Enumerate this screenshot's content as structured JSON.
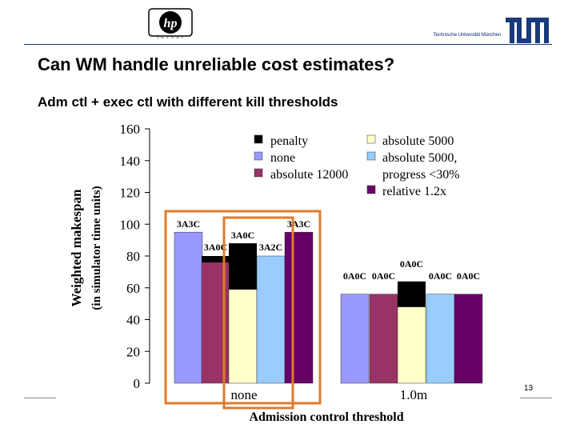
{
  "header": {
    "hp_logo_text": "hp",
    "hp_tagline": "invent",
    "tum_text": "Technische Universität München"
  },
  "slide": {
    "title": "Can WM handle unreliable cost estimates?",
    "subtitle": "Adm ctl + exec ctl with different kill thresholds",
    "page_number": "13"
  },
  "colors": {
    "penalty": "#000000",
    "none": "#9999ff",
    "absolute_12000": "#993366",
    "absolute_5000": "#ffffcc",
    "absolute_5000_progress": "#99ccff",
    "relative_1_2x": "#660066",
    "highlight_box": "#e07b2a"
  },
  "chart_data": {
    "type": "bar",
    "stacked": true,
    "title": "",
    "xlabel": "Admission control threshold",
    "ylabel": "Weighted makespan (in simulator time units)",
    "ylim": [
      0,
      160
    ],
    "yticks": [
      0,
      20,
      40,
      60,
      80,
      100,
      120,
      140,
      160
    ],
    "groups": [
      "none",
      "1.0m"
    ],
    "legend": [
      {
        "key": "penalty",
        "label": "penalty"
      },
      {
        "key": "none",
        "label": "none"
      },
      {
        "key": "absolute_12000",
        "label": "absolute 12000"
      },
      {
        "key": "absolute_5000",
        "label": "absolute 5000"
      },
      {
        "key": "absolute_5000_progress",
        "label": "absolute 5000, progress <30%"
      },
      {
        "key": "relative_1_2x",
        "label": "relative 1.2x"
      }
    ],
    "bars": [
      {
        "group": "none",
        "series": "none",
        "base": 95,
        "penalty": 0,
        "label": "3A3C"
      },
      {
        "group": "none",
        "series": "absolute_12000",
        "base": 76,
        "penalty": 4,
        "label": "3A0C"
      },
      {
        "group": "none",
        "series": "absolute_5000",
        "base": 59,
        "penalty": 29,
        "label": "3A0C"
      },
      {
        "group": "none",
        "series": "absolute_5000_progress",
        "base": 80,
        "penalty": 0,
        "label": "3A2C"
      },
      {
        "group": "none",
        "series": "relative_1_2x",
        "base": 95,
        "penalty": 0,
        "label": "3A3C"
      },
      {
        "group": "1.0m",
        "series": "none",
        "base": 56,
        "penalty": 0,
        "label": "0A0C"
      },
      {
        "group": "1.0m",
        "series": "absolute_12000",
        "base": 56,
        "penalty": 0,
        "label": "0A0C"
      },
      {
        "group": "1.0m",
        "series": "absolute_5000",
        "base": 48,
        "penalty": 16,
        "label": "0A0C"
      },
      {
        "group": "1.0m",
        "series": "absolute_5000_progress",
        "base": 56,
        "penalty": 0,
        "label": "0A0C"
      },
      {
        "group": "1.0m",
        "series": "relative_1_2x",
        "base": 56,
        "penalty": 0,
        "label": "0A0C"
      }
    ]
  }
}
